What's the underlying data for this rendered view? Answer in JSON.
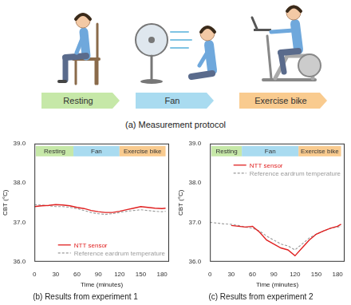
{
  "protocol": {
    "caption": "(a) Measurement protocol",
    "stages": [
      {
        "label": "Resting",
        "color": "#c6e8a8"
      },
      {
        "label": "Fan",
        "color": "#a9dbf0"
      },
      {
        "label": "Exercise bike",
        "color": "#f9cb8f"
      }
    ]
  },
  "chart_data": [
    {
      "type": "line",
      "title": "(b) Results from experiment 1",
      "x_label": "Time (minutes)",
      "y_label": "CBT (°C)",
      "x": [
        0,
        10,
        20,
        30,
        40,
        50,
        60,
        70,
        80,
        90,
        100,
        110,
        120,
        130,
        140,
        150,
        160,
        170,
        180,
        185
      ],
      "series": [
        {
          "name": "NTT sensor",
          "color": "#e02020",
          "line_style": "solid",
          "values": [
            37.4,
            37.42,
            37.43,
            37.45,
            37.44,
            37.42,
            37.38,
            37.35,
            37.3,
            37.27,
            37.25,
            37.25,
            37.28,
            37.32,
            37.36,
            37.4,
            37.38,
            37.36,
            37.35,
            37.36
          ]
        },
        {
          "name": "Reference eardrum temperature",
          "color": "#9a9a9a",
          "line_style": "dashed",
          "values": [
            37.45,
            37.44,
            37.42,
            37.4,
            37.4,
            37.38,
            37.35,
            37.3,
            37.25,
            37.22,
            37.2,
            37.22,
            37.25,
            37.28,
            37.3,
            37.32,
            37.3,
            37.28,
            37.27,
            37.28
          ]
        }
      ],
      "xlim": [
        0,
        190
      ],
      "xticks": [
        0,
        30,
        60,
        90,
        120,
        150,
        180
      ],
      "ylim": [
        36.0,
        39.0
      ],
      "yticks": [
        {
          "value": 36.0,
          "label": "36.0"
        },
        {
          "value": 37.0,
          "label": "37.0"
        },
        {
          "value": 38.0,
          "label": "38.0"
        },
        {
          "value": 39.0,
          "label": "39.0"
        }
      ],
      "grid": false,
      "legend": "lower right",
      "annotations": [
        {
          "text": "Resting",
          "start": 2,
          "end": 55,
          "color": "#c6e8a8"
        },
        {
          "text": "Fan",
          "start": 55,
          "end": 120,
          "color": "#a9dbf0"
        },
        {
          "text": "Exercise bike",
          "start": 120,
          "end": 185,
          "color": "#f9cb8f"
        }
      ]
    },
    {
      "type": "line",
      "title": "(c) Results from experiment 2",
      "x_label": "Time (minutes)",
      "y_label": "CBT (°C)",
      "x": [
        0,
        10,
        20,
        30,
        40,
        50,
        60,
        70,
        80,
        90,
        100,
        110,
        120,
        130,
        140,
        150,
        160,
        170,
        180,
        185
      ],
      "series": [
        {
          "name": "NTT sensor",
          "color": "#e02020",
          "line_style": "solid",
          "values": [
            null,
            null,
            null,
            36.92,
            36.9,
            36.88,
            36.9,
            36.75,
            36.55,
            36.45,
            36.35,
            36.3,
            36.15,
            36.35,
            36.55,
            36.7,
            36.78,
            36.85,
            36.9,
            36.95
          ]
        },
        {
          "name": "Reference eardrum temperature",
          "color": "#9a9a9a",
          "line_style": "dashed",
          "values": [
            37.0,
            36.98,
            36.96,
            36.95,
            36.92,
            36.88,
            36.85,
            36.78,
            36.65,
            36.55,
            36.45,
            36.4,
            36.3,
            36.45,
            36.6,
            36.7,
            36.78,
            36.85,
            36.88,
            36.9
          ]
        }
      ],
      "xlim": [
        0,
        190
      ],
      "xticks": [
        0,
        30,
        60,
        90,
        120,
        150,
        180
      ],
      "ylim": [
        36.0,
        39.0
      ],
      "yticks": [
        {
          "value": 36.0,
          "label": "36.0"
        },
        {
          "value": 37.0,
          "label": "37.0"
        },
        {
          "value": 38.0,
          "label": "38.0"
        },
        {
          "value": 39.0,
          "label": "39.0"
        }
      ],
      "grid": false,
      "legend": "upper right",
      "annotations": [
        {
          "text": "Resting",
          "start": 2,
          "end": 45,
          "color": "#c6e8a8"
        },
        {
          "text": "Fan",
          "start": 45,
          "end": 125,
          "color": "#a9dbf0"
        },
        {
          "text": "Exercise bike",
          "start": 125,
          "end": 185,
          "color": "#f9cb8f"
        }
      ]
    }
  ]
}
